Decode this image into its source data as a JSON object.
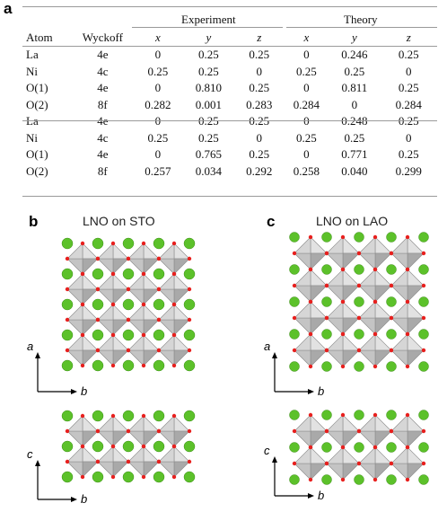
{
  "panels": {
    "a": "a",
    "b": "b",
    "c": "c"
  },
  "table": {
    "group_headers": {
      "experiment": "Experiment",
      "theory": "Theory"
    },
    "columns": [
      "Atom",
      "Wyckoff",
      "x",
      "y",
      "z",
      "x",
      "y",
      "z"
    ],
    "rows": [
      [
        "La",
        "4e",
        "0",
        "0.25",
        "0.25",
        "0",
        "0.246",
        "0.25"
      ],
      [
        "Ni",
        "4c",
        "0.25",
        "0.25",
        "0",
        "0.25",
        "0.25",
        "0"
      ],
      [
        "O(1)",
        "4e",
        "0",
        "0.810",
        "0.25",
        "0",
        "0.811",
        "0.25"
      ],
      [
        "O(2)",
        "8f",
        "0.282",
        "0.001",
        "0.283",
        "0.284",
        "0",
        "0.284"
      ],
      [
        "La",
        "4e",
        "0",
        "0.25",
        "0.25",
        "0",
        "0.248",
        "0.25"
      ],
      [
        "Ni",
        "4c",
        "0.25",
        "0.25",
        "0",
        "0.25",
        "0.25",
        "0"
      ],
      [
        "O(1)",
        "4e",
        "0",
        "0.765",
        "0.25",
        "0",
        "0.771",
        "0.25"
      ],
      [
        "O(2)",
        "8f",
        "0.257",
        "0.034",
        "0.292",
        "0.258",
        "0.040",
        "0.299"
      ]
    ]
  },
  "diagrams": {
    "sto": {
      "title": "LNO on STO",
      "top_axes": {
        "vertical": "a",
        "horizontal": "b"
      },
      "bottom_axes": {
        "vertical": "c",
        "horizontal": "b"
      }
    },
    "lao": {
      "title": "LNO on LAO",
      "top_axes": {
        "vertical": "a",
        "horizontal": "b"
      },
      "bottom_axes": {
        "vertical": "c",
        "horizontal": "b"
      }
    }
  },
  "colors": {
    "la_atom": "#5cc12a",
    "oxygen_atom": "#e8201e",
    "octahedron": "#c8c8c8",
    "rule": "#9a9a9a"
  }
}
